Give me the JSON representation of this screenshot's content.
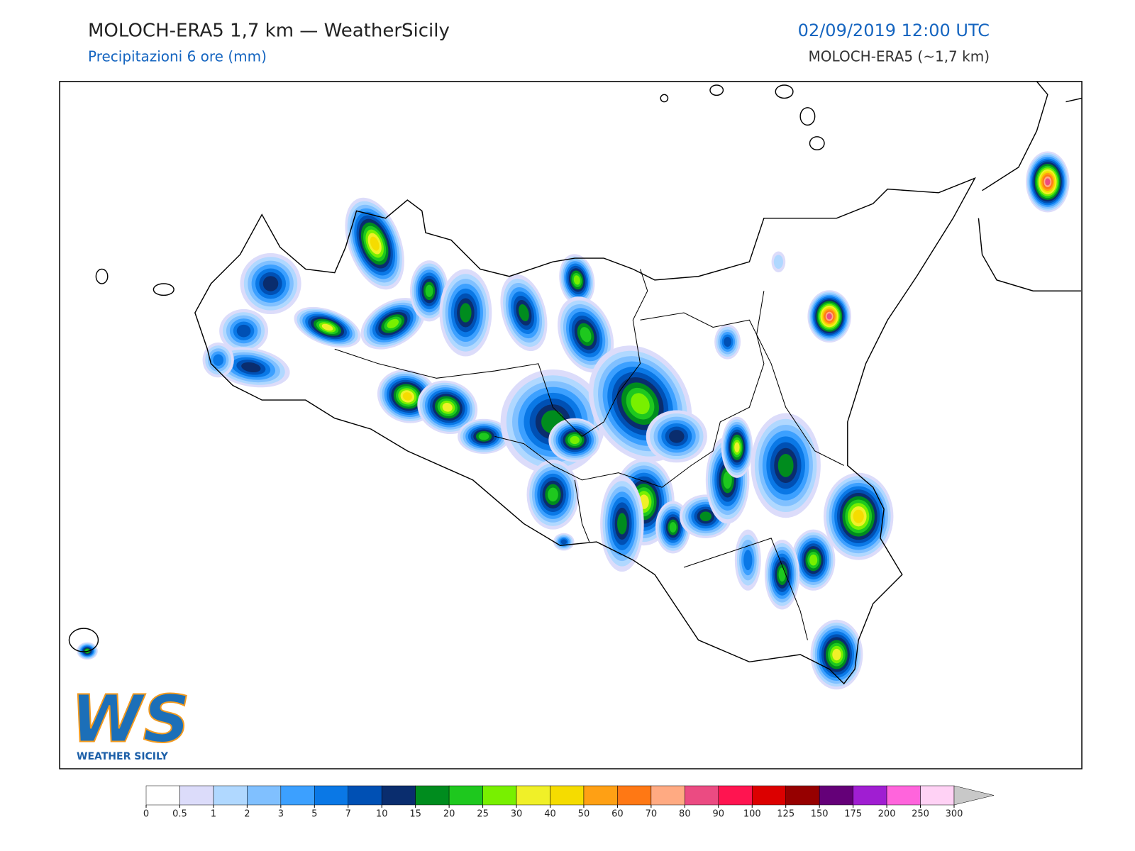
{
  "header": {
    "title": "MOLOCH-ERA5 1,7 km — WeatherSicily",
    "subtitle": "Precipitazioni 6 ore (mm)",
    "datetime": "02/09/2019 12:00 UTC",
    "model": "MOLOCH-ERA5 (~1,7 km)"
  },
  "logo": {
    "mark": "WS",
    "text": "WEATHER SICILY"
  },
  "colorbar": {
    "levels": [
      0,
      0.5,
      1,
      2,
      3,
      5,
      7,
      10,
      15,
      20,
      25,
      30,
      40,
      50,
      60,
      70,
      80,
      90,
      100,
      125,
      150,
      175,
      200,
      250,
      300
    ],
    "colors": [
      "#ffffff",
      "#dcdcfa",
      "#b0d8ff",
      "#80c0ff",
      "#3ca0ff",
      "#0a78e6",
      "#0050b4",
      "#0a2d6e",
      "#008c1e",
      "#1ec81e",
      "#78f000",
      "#f0f028",
      "#f5dc00",
      "#ffa014",
      "#ff7814",
      "#ffaa82",
      "#eb4b82",
      "#ff1450",
      "#dc0000",
      "#960000",
      "#640078",
      "#a01ed2",
      "#ff64dc",
      "#ffd2f5"
    ],
    "over_color": "#c8c8c8"
  }
}
